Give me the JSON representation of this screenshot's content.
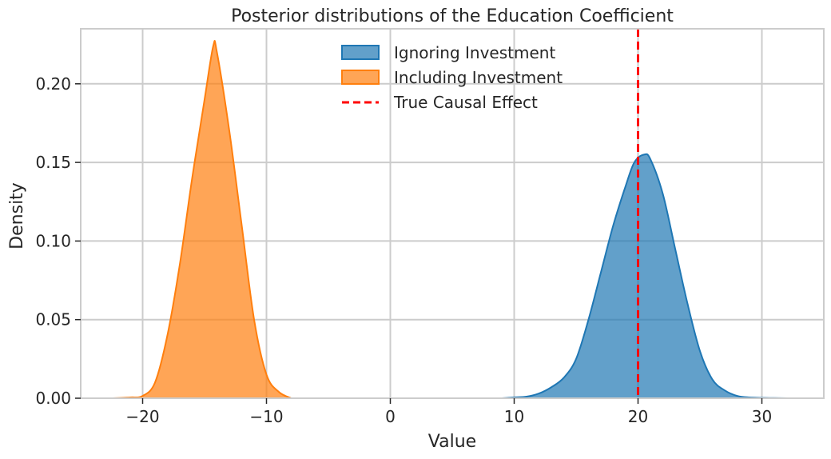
{
  "chart_data": {
    "type": "area",
    "title": "Posterior distributions of the Education Coefficient",
    "xlabel": "Value",
    "ylabel": "Density",
    "xlim": [
      -25,
      35
    ],
    "ylim": [
      0,
      0.235
    ],
    "x_ticks": [
      -20,
      -10,
      0,
      10,
      20,
      30
    ],
    "x_tick_labels": [
      "−20",
      "−10",
      "0",
      "10",
      "20",
      "30"
    ],
    "y_ticks": [
      0.0,
      0.05,
      0.1,
      0.15,
      0.2
    ],
    "y_tick_labels": [
      "0.00",
      "0.05",
      "0.10",
      "0.15",
      "0.20"
    ],
    "grid": true,
    "legend_position": "top-center",
    "series": [
      {
        "name": "Ignoring Investment",
        "kind": "density",
        "color": "#1f77b4",
        "points": [
          [
            9,
            0.0
          ],
          [
            10,
            0.0005
          ],
          [
            11,
            0.001
          ],
          [
            12,
            0.003
          ],
          [
            13,
            0.007
          ],
          [
            14,
            0.013
          ],
          [
            15,
            0.025
          ],
          [
            16,
            0.05
          ],
          [
            17,
            0.08
          ],
          [
            18,
            0.11
          ],
          [
            19,
            0.135
          ],
          [
            19.7,
            0.15
          ],
          [
            20.5,
            0.155
          ],
          [
            21,
            0.152
          ],
          [
            22,
            0.13
          ],
          [
            23,
            0.095
          ],
          [
            24,
            0.06
          ],
          [
            25,
            0.03
          ],
          [
            26,
            0.012
          ],
          [
            27,
            0.005
          ],
          [
            28,
            0.0015
          ],
          [
            29,
            0.0005
          ],
          [
            31,
            0.0001
          ],
          [
            32.3,
            0.0
          ]
        ]
      },
      {
        "name": "Including Investment",
        "kind": "density",
        "color": "#ff7f0e",
        "points": [
          [
            -22.5,
            0.0
          ],
          [
            -21,
            0.0005
          ],
          [
            -20,
            0.0015
          ],
          [
            -19,
            0.01
          ],
          [
            -18,
            0.04
          ],
          [
            -17,
            0.085
          ],
          [
            -16,
            0.14
          ],
          [
            -15,
            0.19
          ],
          [
            -14.3,
            0.224
          ],
          [
            -14,
            0.22
          ],
          [
            -13,
            0.17
          ],
          [
            -12,
            0.11
          ],
          [
            -11,
            0.05
          ],
          [
            -10,
            0.015
          ],
          [
            -9,
            0.004
          ],
          [
            -8,
            0.0
          ]
        ]
      }
    ],
    "reference_lines": [
      {
        "name": "True Causal Effect",
        "x": 20,
        "color": "#ff0000",
        "style": "dashed"
      }
    ]
  }
}
